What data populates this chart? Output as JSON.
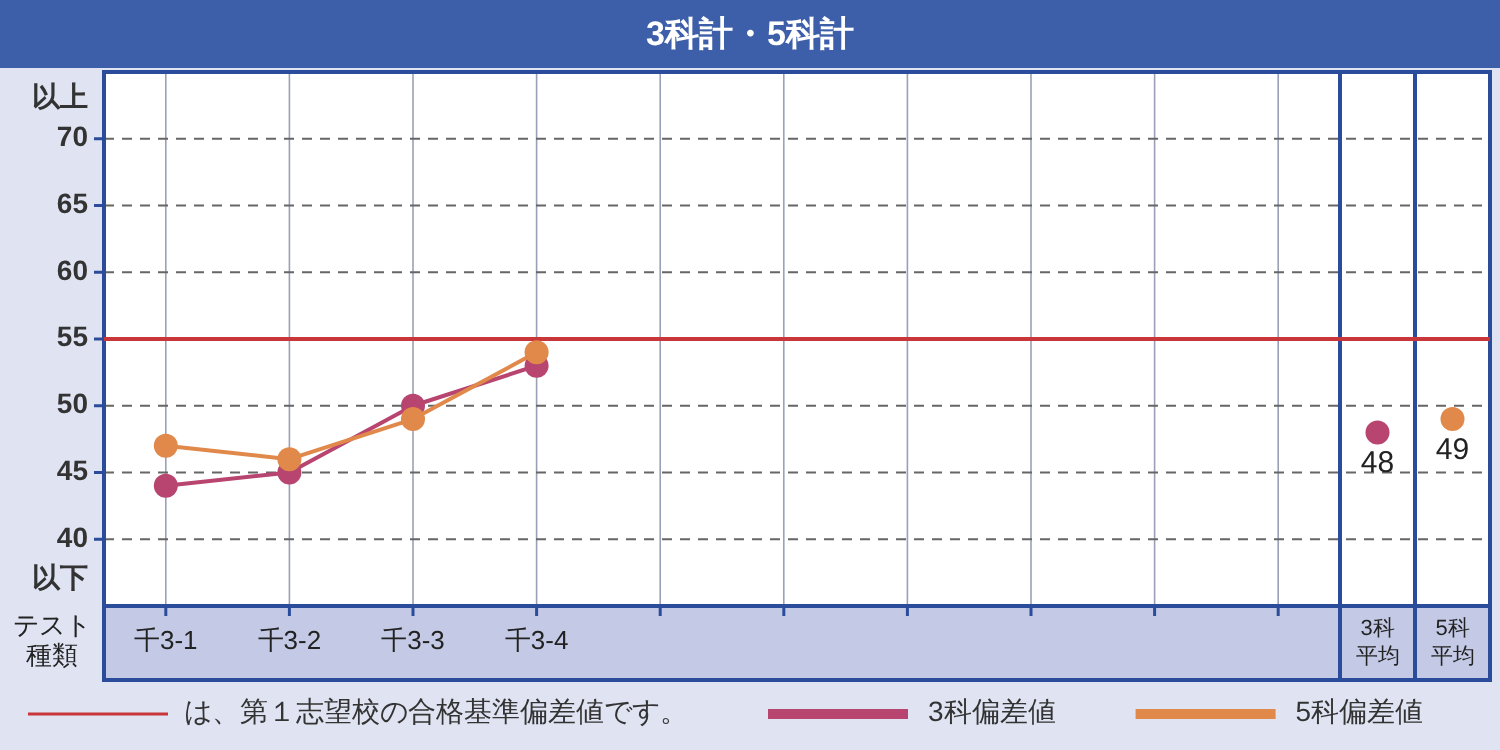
{
  "chart_data": {
    "type": "line",
    "title": "3科計・5科計",
    "xlabel": "テスト種類",
    "categories": [
      "千3-1",
      "千3-2",
      "千3-3",
      "千3-4",
      null,
      null,
      null,
      null,
      null,
      null,
      "3科平均",
      "5科平均"
    ],
    "series": [
      {
        "name": "3科偏差値",
        "color": "#b8456f",
        "values": [
          44,
          45,
          50,
          53,
          null,
          null,
          null,
          null,
          null,
          null,
          48,
          null
        ],
        "value_labels": [
          null,
          null,
          null,
          null,
          null,
          null,
          null,
          null,
          null,
          null,
          "48",
          null
        ]
      },
      {
        "name": "5科偏差値",
        "color": "#e0894a",
        "values": [
          47,
          46,
          49,
          54,
          null,
          null,
          null,
          null,
          null,
          null,
          null,
          49
        ],
        "value_labels": [
          null,
          null,
          null,
          null,
          null,
          null,
          null,
          null,
          null,
          null,
          null,
          "49"
        ]
      }
    ],
    "ylim": [
      35,
      75
    ],
    "yticks": [
      {
        "value": 37,
        "label": "以下"
      },
      40,
      45,
      50,
      55,
      60,
      65,
      70,
      {
        "value": 73,
        "label": "以上"
      }
    ],
    "ref_lines": [
      {
        "axis": "y",
        "value": 55,
        "label": "は、第１志望校の合格基準偏差値です。",
        "color": "#c8363a"
      }
    ],
    "grid": true,
    "legend": "bottom",
    "marker": "circle",
    "line_style": "solid"
  }
}
